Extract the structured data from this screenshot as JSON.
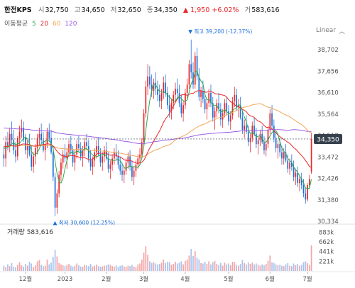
{
  "header": {
    "name": "한전KPS",
    "open_label": "시",
    "open": "32,750",
    "high_label": "고",
    "high": "34,650",
    "low_label": "저",
    "low": "32,650",
    "close_label": "종",
    "close": "34,350",
    "change": "▲ 1,950 +6.02%",
    "volume_label": "거",
    "volume": "583,616"
  },
  "moving_average": {
    "label": "이동평균",
    "periods": [
      {
        "value": "5",
        "color": "#2fa84f"
      },
      {
        "value": "20",
        "color": "#e8282b"
      },
      {
        "value": "60",
        "color": "#f0a65a"
      },
      {
        "value": "120",
        "color": "#9b5de5"
      }
    ]
  },
  "scale_mode": "Linear",
  "colors": {
    "up": "#e8282b",
    "down": "#1f6fd8",
    "ma5": "#2fa84f",
    "ma20": "#e8282b",
    "ma60": "#f0a65a",
    "ma120": "#9b5de5",
    "last_price_bg": "#37414d"
  },
  "chart_data": {
    "type": "candlestick",
    "price_ticks": [
      "38,702",
      "37,656",
      "36,610",
      "35,564",
      "34,518",
      "33,472",
      "32,426",
      "31,380",
      "30,334"
    ],
    "price_range": [
      30334,
      39400
    ],
    "last_price": "34,350",
    "high_annotation": "최고 39,200 (-12.37%)",
    "low_annotation": "최저 30,600 (12.25%)",
    "volume_label": "거래량 583,616",
    "volume_ticks": [
      "883k",
      "662k",
      "441k",
      "221k"
    ],
    "volume_max": 1000000,
    "x_labels": [
      "12월",
      "2023",
      "2월",
      "3월",
      "4월",
      "5월",
      "6월",
      "7월"
    ],
    "x_label_index": [
      11,
      31,
      52,
      71,
      92,
      114,
      135,
      154
    ],
    "ohlc": [
      [
        33600,
        34000,
        33000,
        33400
      ],
      [
        33400,
        34500,
        33000,
        34200
      ],
      [
        34200,
        34700,
        33800,
        34000
      ],
      [
        34000,
        34900,
        33700,
        34600
      ],
      [
        34600,
        35200,
        34100,
        34300
      ],
      [
        34300,
        34800,
        33600,
        33800
      ],
      [
        33800,
        34200,
        33200,
        33500
      ],
      [
        33500,
        34500,
        33300,
        34400
      ],
      [
        34400,
        35000,
        34000,
        34700
      ],
      [
        34700,
        35300,
        34400,
        34900
      ],
      [
        34900,
        35200,
        34200,
        34400
      ],
      [
        34400,
        34600,
        33600,
        33800
      ],
      [
        33800,
        34300,
        33400,
        34000
      ],
      [
        34000,
        34600,
        33500,
        33600
      ],
      [
        33600,
        34000,
        32800,
        33000
      ],
      [
        33000,
        33700,
        32700,
        33500
      ],
      [
        33500,
        34100,
        33100,
        33900
      ],
      [
        33900,
        34600,
        33600,
        34400
      ],
      [
        34400,
        34900,
        34000,
        34600
      ],
      [
        34600,
        35100,
        34100,
        34300
      ],
      [
        34300,
        34700,
        33700,
        33800
      ],
      [
        33800,
        34300,
        33300,
        34100
      ],
      [
        34100,
        34900,
        33900,
        34700
      ],
      [
        34700,
        35100,
        34200,
        34400
      ],
      [
        34400,
        34800,
        33600,
        33700
      ],
      [
        33700,
        34000,
        32300,
        32500
      ],
      [
        32500,
        32700,
        30600,
        31000
      ],
      [
        31000,
        31900,
        30700,
        31700
      ],
      [
        31700,
        32800,
        31500,
        32600
      ],
      [
        32600,
        33400,
        32300,
        33200
      ],
      [
        33200,
        33800,
        32900,
        33600
      ],
      [
        33600,
        34100,
        33200,
        33400
      ],
      [
        33400,
        33900,
        32900,
        33700
      ],
      [
        33700,
        34300,
        33500,
        34100
      ],
      [
        34100,
        34500,
        33600,
        33800
      ],
      [
        33800,
        34000,
        33000,
        33200
      ],
      [
        33200,
        33800,
        32800,
        33600
      ],
      [
        33600,
        34300,
        33400,
        34100
      ],
      [
        34100,
        34500,
        33700,
        33900
      ],
      [
        33900,
        34200,
        33300,
        33500
      ],
      [
        33500,
        34000,
        33000,
        33800
      ],
      [
        33800,
        34400,
        33500,
        34200
      ],
      [
        34200,
        34600,
        33800,
        34000
      ],
      [
        34000,
        34300,
        33200,
        33400
      ],
      [
        33400,
        33800,
        32800,
        33000
      ],
      [
        33000,
        33500,
        32600,
        33300
      ],
      [
        33300,
        33900,
        33000,
        33700
      ],
      [
        33700,
        34300,
        33400,
        34000
      ],
      [
        34000,
        34400,
        33500,
        33600
      ],
      [
        33600,
        33900,
        33000,
        33200
      ],
      [
        33200,
        33700,
        32800,
        33500
      ],
      [
        33500,
        34000,
        33200,
        33800
      ],
      [
        33800,
        34200,
        33300,
        33400
      ],
      [
        33400,
        33700,
        32700,
        32900
      ],
      [
        32900,
        33300,
        32400,
        33100
      ],
      [
        33100,
        33600,
        32800,
        33400
      ],
      [
        33400,
        33900,
        33100,
        33700
      ],
      [
        33700,
        34100,
        33300,
        33500
      ],
      [
        33500,
        33800,
        32900,
        33100
      ],
      [
        33100,
        33500,
        32600,
        32800
      ],
      [
        32800,
        33200,
        32300,
        32600
      ],
      [
        32600,
        33000,
        32200,
        32800
      ],
      [
        32800,
        33400,
        32600,
        33200
      ],
      [
        33200,
        33700,
        32900,
        33500
      ],
      [
        33500,
        33800,
        32800,
        33000
      ],
      [
        33000,
        33300,
        32300,
        32500
      ],
      [
        32500,
        33000,
        32100,
        32800
      ],
      [
        32800,
        33300,
        32500,
        33100
      ],
      [
        33100,
        33600,
        32900,
        33400
      ],
      [
        33400,
        33900,
        33100,
        33600
      ],
      [
        33600,
        34400,
        33400,
        34200
      ],
      [
        34200,
        35800,
        34000,
        35600
      ],
      [
        35600,
        37200,
        35400,
        36900
      ],
      [
        36900,
        38000,
        36500,
        37400
      ],
      [
        37400,
        37900,
        36800,
        37000
      ],
      [
        37000,
        37500,
        36400,
        36700
      ],
      [
        36700,
        37300,
        36300,
        37100
      ],
      [
        37100,
        37600,
        36500,
        36800
      ],
      [
        36800,
        37200,
        36200,
        36500
      ],
      [
        36500,
        37000,
        35900,
        36200
      ],
      [
        36200,
        36800,
        35800,
        36600
      ],
      [
        36600,
        37400,
        36300,
        37100
      ],
      [
        37100,
        37500,
        36400,
        36600
      ],
      [
        36600,
        36900,
        35800,
        36000
      ],
      [
        36000,
        36500,
        35400,
        35700
      ],
      [
        35700,
        36300,
        35300,
        36100
      ],
      [
        36100,
        36700,
        35800,
        36500
      ],
      [
        36500,
        37100,
        36100,
        36800
      ],
      [
        36800,
        37300,
        36300,
        36600
      ],
      [
        36600,
        37000,
        35900,
        36100
      ],
      [
        36100,
        36500,
        35400,
        35600
      ],
      [
        35600,
        36200,
        35200,
        36000
      ],
      [
        36000,
        36800,
        35800,
        36600
      ],
      [
        36600,
        37300,
        36300,
        37000
      ],
      [
        37000,
        38200,
        36800,
        38000
      ],
      [
        38000,
        39200,
        37300,
        37600
      ],
      [
        37600,
        38100,
        36800,
        37000
      ],
      [
        37000,
        38600,
        36800,
        38400
      ],
      [
        38400,
        38800,
        37200,
        37400
      ],
      [
        37400,
        37800,
        36200,
        36400
      ],
      [
        36400,
        36900,
        35900,
        36700
      ],
      [
        36700,
        37200,
        36100,
        36300
      ],
      [
        36300,
        36700,
        35600,
        35800
      ],
      [
        35800,
        36300,
        35300,
        36100
      ],
      [
        36100,
        36800,
        35900,
        36600
      ],
      [
        36600,
        37000,
        35900,
        36100
      ],
      [
        36100,
        36400,
        35200,
        35400
      ],
      [
        35400,
        35900,
        34800,
        35700
      ],
      [
        35700,
        36300,
        35400,
        36100
      ],
      [
        36100,
        36600,
        35600,
        35800
      ],
      [
        35800,
        36100,
        35000,
        35300
      ],
      [
        35300,
        35800,
        34900,
        35600
      ],
      [
        35600,
        36300,
        35400,
        36100
      ],
      [
        36100,
        36400,
        35500,
        35700
      ],
      [
        35700,
        36000,
        35000,
        35200
      ],
      [
        35200,
        35700,
        34800,
        35500
      ],
      [
        35500,
        36400,
        35300,
        36200
      ],
      [
        36200,
        36900,
        35900,
        36500
      ],
      [
        36500,
        36800,
        35700,
        35900
      ],
      [
        35900,
        36300,
        35400,
        36000
      ],
      [
        36000,
        36400,
        35300,
        35400
      ],
      [
        35400,
        35700,
        34600,
        34800
      ],
      [
        34800,
        35300,
        34400,
        35000
      ],
      [
        35000,
        35500,
        34600,
        34700
      ],
      [
        34700,
        35000,
        34000,
        34200
      ],
      [
        34200,
        34600,
        33700,
        34400
      ],
      [
        34400,
        35200,
        34200,
        35000
      ],
      [
        35000,
        35400,
        34500,
        34600
      ],
      [
        34600,
        34900,
        33900,
        34100
      ],
      [
        34100,
        34500,
        33600,
        34300
      ],
      [
        34300,
        34800,
        34000,
        34600
      ],
      [
        34600,
        35000,
        34100,
        34200
      ],
      [
        34200,
        34500,
        33600,
        33800
      ],
      [
        33800,
        34300,
        33500,
        34100
      ],
      [
        34100,
        35000,
        33900,
        34800
      ],
      [
        34800,
        35800,
        34600,
        35600
      ],
      [
        35600,
        36000,
        34800,
        35000
      ],
      [
        35000,
        35300,
        34200,
        34400
      ],
      [
        34400,
        34700,
        33700,
        33900
      ],
      [
        33900,
        34300,
        33400,
        34100
      ],
      [
        34100,
        34400,
        33500,
        33700
      ],
      [
        33700,
        34000,
        33100,
        33400
      ],
      [
        33400,
        33900,
        33100,
        33700
      ],
      [
        33700,
        34100,
        33200,
        33300
      ],
      [
        33300,
        33600,
        32700,
        32900
      ],
      [
        32900,
        33400,
        32600,
        33200
      ],
      [
        33200,
        33600,
        32800,
        33000
      ],
      [
        33000,
        33300,
        32300,
        32500
      ],
      [
        32500,
        32900,
        32100,
        32700
      ],
      [
        32700,
        33000,
        32000,
        32200
      ],
      [
        32200,
        32600,
        31800,
        32400
      ],
      [
        32400,
        32700,
        31900,
        32100
      ],
      [
        32100,
        32400,
        31500,
        31700
      ],
      [
        31700,
        32000,
        31200,
        31400
      ],
      [
        31400,
        32200,
        31300,
        32100
      ],
      [
        32100,
        32600,
        31900,
        32400
      ],
      [
        32750,
        34650,
        32650,
        34350
      ]
    ],
    "volume": [
      120000,
      90000,
      150000,
      110000,
      180000,
      95000,
      85000,
      140000,
      200000,
      130000,
      100000,
      160000,
      120000,
      210000,
      170000,
      90000,
      130000,
      220000,
      250000,
      140000,
      110000,
      120000,
      260000,
      150000,
      190000,
      320000,
      480000,
      330000,
      180000,
      150000,
      130000,
      110000,
      140000,
      160000,
      120000,
      100000,
      115000,
      170000,
      130000,
      100000,
      95000,
      140000,
      125000,
      110000,
      160000,
      100000,
      120000,
      145000,
      110000,
      95000,
      105000,
      120000,
      130000,
      150000,
      140000,
      110000,
      100000,
      125000,
      90000,
      115000,
      130000,
      100000,
      95000,
      120000,
      110000,
      140000,
      100000,
      90000,
      150000,
      170000,
      260000,
      420000,
      560000,
      370000,
      220000,
      180000,
      200000,
      170000,
      150000,
      160000,
      190000,
      260000,
      180000,
      210000,
      200000,
      140000,
      160000,
      210000,
      170000,
      190000,
      220000,
      150000,
      230000,
      260000,
      350000,
      500000,
      340000,
      450000,
      300000,
      260000,
      180000,
      170000,
      210000,
      160000,
      220000,
      150000,
      200000,
      230000,
      160000,
      140000,
      180000,
      120000,
      190000,
      150000,
      170000,
      130000,
      210000,
      200000,
      140000,
      120000,
      160000,
      250000,
      180000,
      150000,
      200000,
      160000,
      190000,
      150000,
      170000,
      140000,
      120000,
      150000,
      130000,
      160000,
      230000,
      350000,
      200000,
      180000,
      150000,
      130000,
      140000,
      120000,
      110000,
      150000,
      180000,
      120000,
      110000,
      170000,
      130000,
      160000,
      120000,
      140000,
      200000,
      220000,
      180000,
      140000,
      583616
    ]
  }
}
